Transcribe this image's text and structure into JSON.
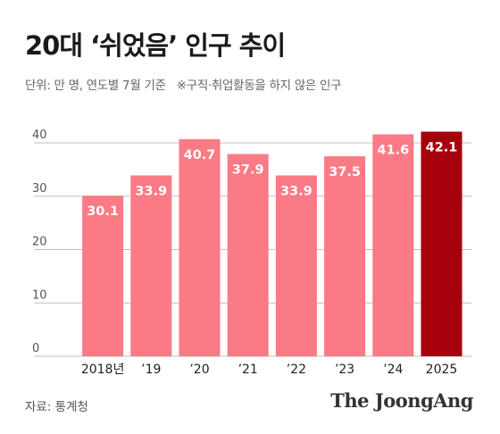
{
  "header": {
    "title": "20대 ‘쉬었음’ 인구 추이",
    "subtitle": "단위: 만 명, 연도별 7월 기준",
    "note": "※구직·취업활동을 하지 않은 인구"
  },
  "footer": {
    "source": "자료: 통계청",
    "logo": "The JoongAng"
  },
  "colors": {
    "bar": "#fa7a85",
    "highlight": "#a6000c",
    "label": "#ffffff",
    "grid": "#bfbfbf",
    "tick": "#555555",
    "category": "#222222"
  },
  "chart_data": {
    "type": "bar",
    "categories": [
      "2018년",
      "’19",
      "’20",
      "’21",
      "’22",
      "’23",
      "’24",
      "2025"
    ],
    "values": [
      30.1,
      33.9,
      40.7,
      37.9,
      33.9,
      37.5,
      41.6,
      42.1
    ],
    "value_labels": [
      "30.1",
      "33.9",
      "40.7",
      "37.9",
      "33.9",
      "37.5",
      "41.6",
      "42.1"
    ],
    "highlight_index": 7,
    "ylim": [
      0,
      40
    ],
    "yticks": [
      0,
      10,
      20,
      30,
      40
    ],
    "grid": true,
    "title": "",
    "xlabel": "",
    "ylabel": ""
  }
}
